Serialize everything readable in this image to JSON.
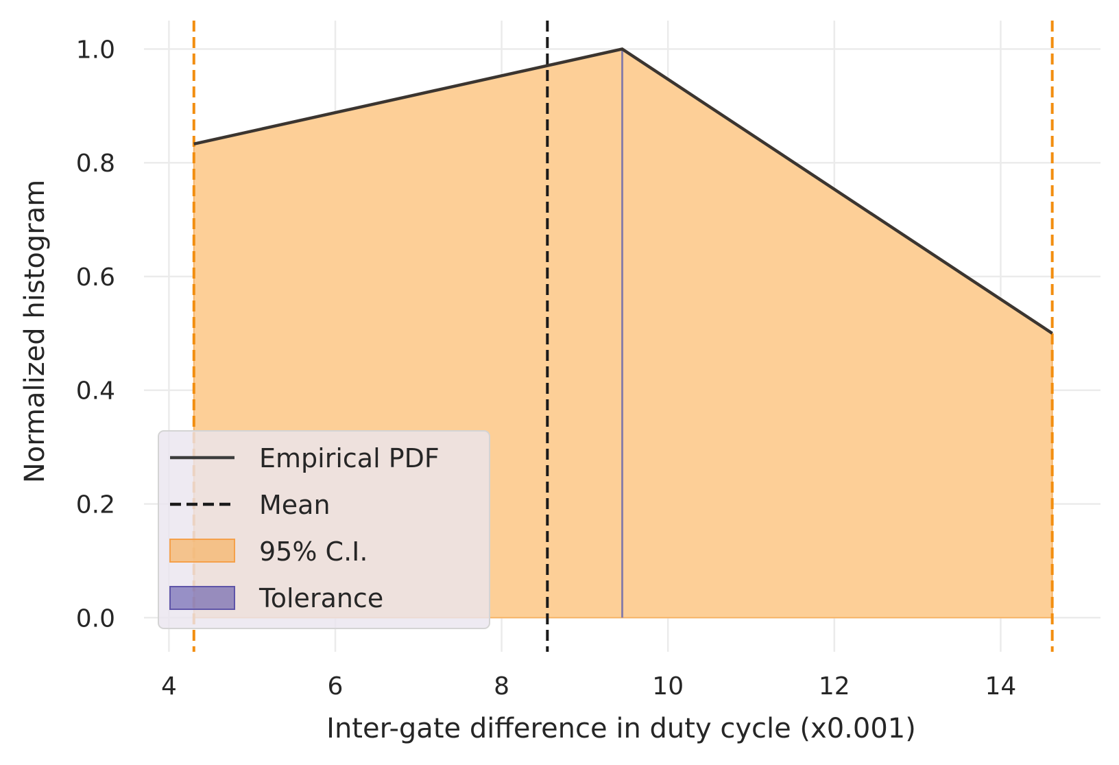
{
  "chart_data": {
    "type": "area",
    "xlabel": "Inter-gate difference in duty cycle  (x0.001)",
    "ylabel": "Normalized histogram",
    "xlim": [
      3.7,
      15.2
    ],
    "ylim": [
      -0.06,
      1.05
    ],
    "xticks": [
      4,
      6,
      8,
      10,
      12,
      14
    ],
    "yticks": [
      0.0,
      0.2,
      0.4,
      0.6,
      0.8,
      1.0
    ],
    "xtick_labels": [
      "4",
      "6",
      "8",
      "10",
      "12",
      "14"
    ],
    "ytick_labels": [
      "0.0",
      "0.2",
      "0.4",
      "0.6",
      "0.8",
      "1.0"
    ],
    "grid": true,
    "empirical_pdf": {
      "x": [
        4.3,
        9.45,
        14.62
      ],
      "y": [
        0.833,
        1.0,
        0.5
      ]
    },
    "ci_95": {
      "lower": 4.3,
      "upper": 14.62
    },
    "mean": 8.55,
    "tolerance_line_x": 9.45,
    "legend": {
      "placement": "lower-left",
      "entries": [
        {
          "label": "Empirical PDF",
          "kind": "solid-line",
          "color": "#3d3d3d"
        },
        {
          "label": "Mean",
          "kind": "dashed-line",
          "color": "#1a1a1a"
        },
        {
          "label": "95% C.I.",
          "kind": "patch",
          "color": "#fdbf6f"
        },
        {
          "label": "Tolerance",
          "kind": "patch",
          "color": "#5e54a8"
        }
      ]
    },
    "colors": {
      "fill": "#fdcf97",
      "ci_line": "#f28e10",
      "pdf_line": "#3b3530",
      "mean_line": "#1a1a1a",
      "tolerance": "#8a7fa8",
      "grid": "#ebebeb"
    }
  }
}
